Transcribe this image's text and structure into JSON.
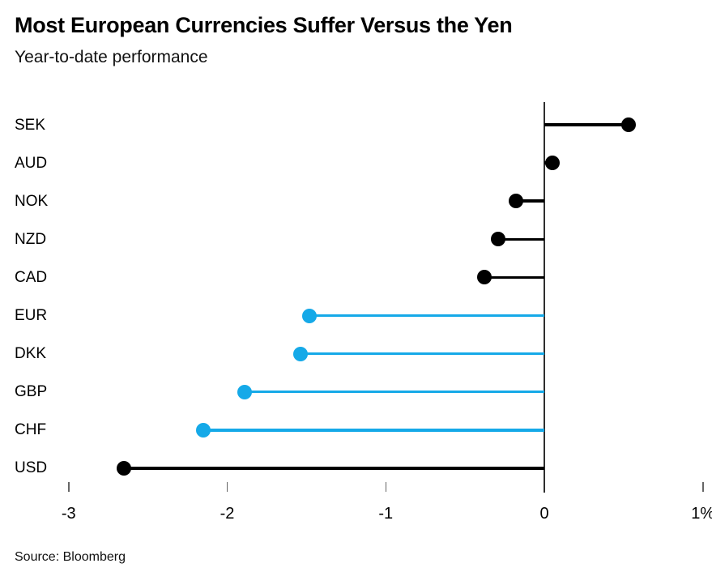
{
  "header": {
    "title": "Most European Currencies Suffer Versus the Yen",
    "subtitle": "Year-to-date performance"
  },
  "footer": {
    "source": "Source: Bloomberg"
  },
  "colors": {
    "black": "#000000",
    "highlight_blue": "#15a9e8",
    "axis_line": "#2e2e2e",
    "tick_gray": "#666666"
  },
  "chart_data": {
    "type": "lollipop",
    "orientation": "horizontal",
    "title": "Most European Currencies Suffer Versus the Yen",
    "subtitle": "Year-to-date performance",
    "xlabel": "",
    "ylabel": "",
    "unit": "%",
    "baseline": 0,
    "grid": false,
    "legend": false,
    "xlim": [
      -3.1,
      1.1
    ],
    "x_ticks": [
      -3,
      -2,
      -1,
      0,
      1
    ],
    "x_tick_labels": [
      "-3",
      "-2",
      "-1",
      "0",
      "1%"
    ],
    "categories": [
      "SEK",
      "AUD",
      "NOK",
      "NZD",
      "CAD",
      "EUR",
      "DKK",
      "GBP",
      "CHF",
      "USD"
    ],
    "values": [
      0.53,
      0.05,
      -0.18,
      -0.29,
      -0.38,
      -1.48,
      -1.54,
      -1.89,
      -2.15,
      -2.65
    ],
    "point_colors": [
      "#000000",
      "#000000",
      "#000000",
      "#000000",
      "#000000",
      "#15a9e8",
      "#15a9e8",
      "#15a9e8",
      "#15a9e8",
      "#000000"
    ],
    "highlight_categories": [
      "EUR",
      "DKK",
      "GBP",
      "CHF"
    ]
  }
}
